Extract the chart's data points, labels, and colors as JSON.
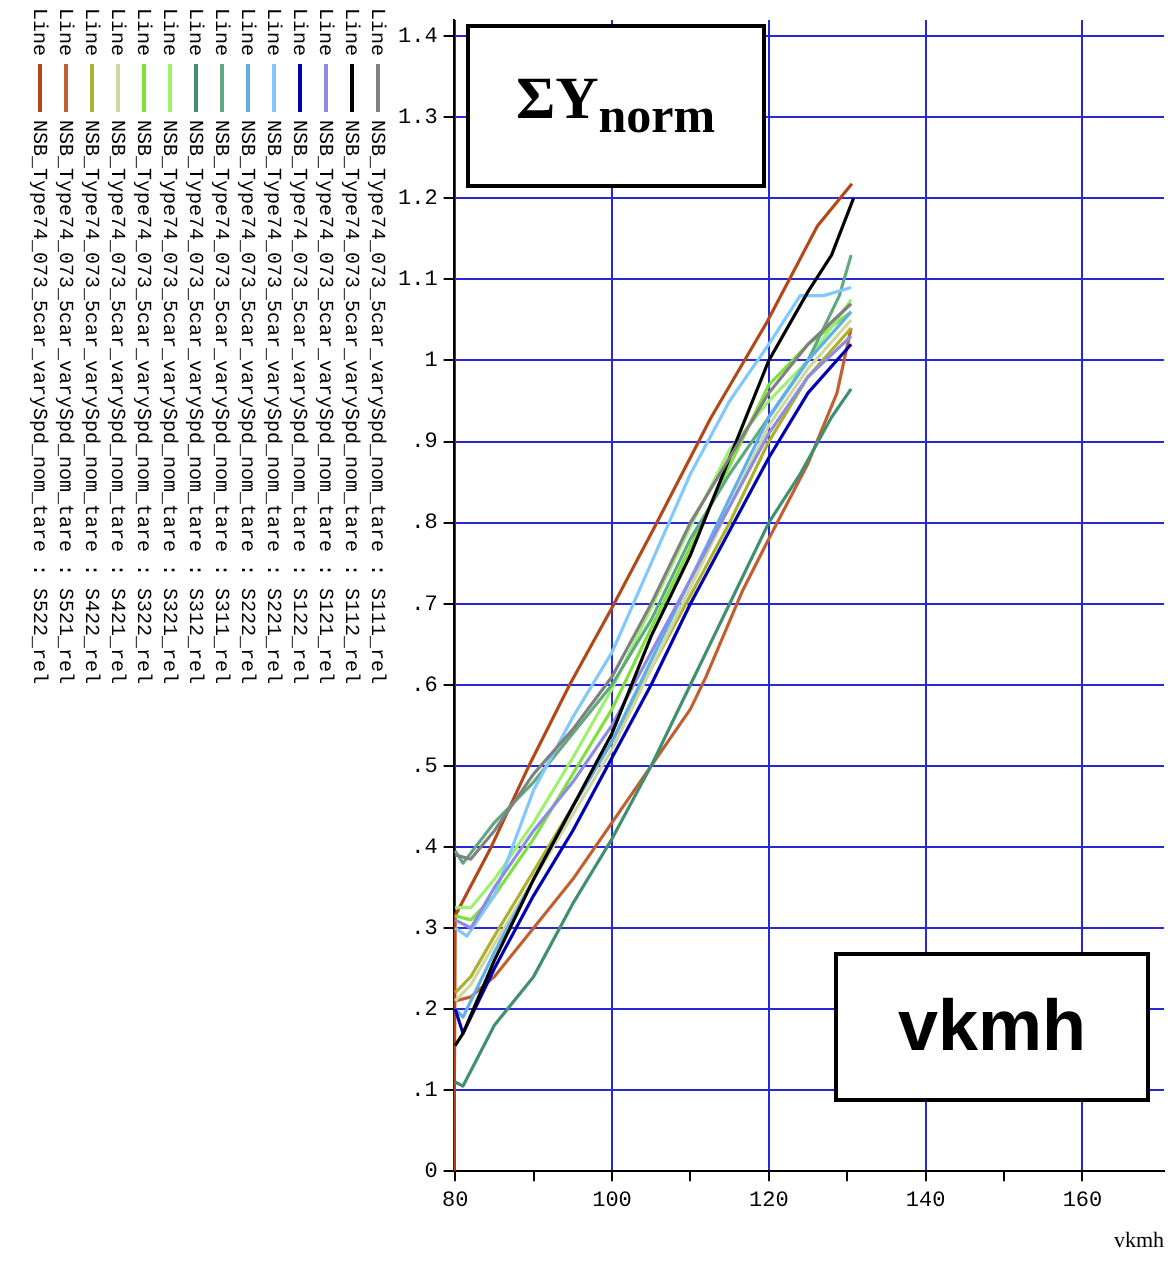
{
  "chart_data": {
    "type": "line",
    "ylabel": "ΣY$_{norm}$",
    "xlabel": "vkmh",
    "annotations": [
      "vkmh"
    ],
    "legend_title": "Line",
    "legend": "left",
    "grid": true,
    "xlim": [
      79.8,
      170.4
    ],
    "xticks": [
      80,
      {
        "value": 90,
        "label": null
      },
      100,
      {
        "value": 110,
        "label": null
      },
      120,
      {
        "value": 130,
        "label": null
      },
      140,
      {
        "value": 150,
        "label": null
      },
      160
    ],
    "ylim": [
      0,
      1.42
    ],
    "yticks": [
      0,
      {
        "value": 0.1,
        "label": ".1"
      },
      {
        "value": 0.2,
        "label": ".2"
      },
      {
        "value": 0.3,
        "label": ".3"
      },
      {
        "value": 0.4,
        "label": ".4"
      },
      {
        "value": 0.5,
        "label": ".5"
      },
      {
        "value": 0.6,
        "label": ".6"
      },
      {
        "value": 0.7,
        "label": ".7"
      },
      {
        "value": 0.8,
        "label": ".8"
      },
      {
        "value": 0.9,
        "label": ".9"
      },
      1,
      1.1,
      1.2,
      1.3,
      1.4
    ],
    "series": [
      {
        "name": "NSB_Type74_073_5car_varySpd_nom_tare : S111_rel",
        "color": "#808080",
        "x": [
          80,
          82,
          85,
          90,
          95,
          100,
          105,
          110,
          115,
          120,
          125,
          130.5
        ],
        "values": [
          0.39,
          0.385,
          0.42,
          0.49,
          0.545,
          0.61,
          0.7,
          0.8,
          0.88,
          0.96,
          1.02,
          1.07
        ]
      },
      {
        "name": "NSB_Type74_073_5car_varySpd_nom_tare : S112_rel",
        "color": "#000000",
        "x": [
          80,
          81,
          85,
          90,
          95,
          100,
          105,
          110,
          115,
          120,
          125,
          128,
          130.8
        ],
        "values": [
          0.155,
          0.17,
          0.26,
          0.36,
          0.45,
          0.54,
          0.66,
          0.76,
          0.88,
          1.0,
          1.085,
          1.13,
          1.2
        ]
      },
      {
        "name": "NSB_Type74_073_5car_varySpd_nom_tare : S121_rel",
        "color": "#8c8ce0",
        "x": [
          80,
          82,
          85,
          90,
          95,
          100,
          105,
          110,
          115,
          120,
          125,
          130.5
        ],
        "values": [
          0.31,
          0.3,
          0.35,
          0.42,
          0.48,
          0.55,
          0.64,
          0.73,
          0.82,
          0.91,
          0.98,
          1.03
        ]
      },
      {
        "name": "NSB_Type74_073_5car_varySpd_nom_tare : S122_rel",
        "color": "#0000b0",
        "x": [
          80,
          81,
          85,
          90,
          95,
          100,
          105,
          110,
          115,
          120,
          125,
          130.5
        ],
        "values": [
          0.2,
          0.17,
          0.25,
          0.34,
          0.42,
          0.51,
          0.6,
          0.7,
          0.79,
          0.88,
          0.96,
          1.02
        ]
      },
      {
        "name": "NSB_Type74_073_5car_varySpd_nom_tare : S221_rel",
        "color": "#80c8ff",
        "x": [
          80,
          81.5,
          85,
          90,
          95,
          100,
          105,
          110,
          115,
          120,
          124,
          127,
          130.5
        ],
        "values": [
          0.3,
          0.29,
          0.34,
          0.47,
          0.56,
          0.64,
          0.75,
          0.86,
          0.95,
          1.02,
          1.08,
          1.08,
          1.09
        ]
      },
      {
        "name": "NSB_Type74_073_5car_varySpd_nom_tare : S222_rel",
        "color": "#60b0e8",
        "x": [
          80,
          81,
          85,
          90,
          95,
          100,
          105,
          110,
          115,
          120,
          125,
          130.5
        ],
        "values": [
          0.2,
          0.19,
          0.27,
          0.36,
          0.45,
          0.53,
          0.63,
          0.73,
          0.83,
          0.93,
          1.0,
          1.06
        ]
      },
      {
        "name": "NSB_Type74_073_5car_varySpd_nom_tare : S311_rel",
        "color": "#60a880",
        "x": [
          80,
          81,
          85,
          90,
          95,
          100,
          105,
          110,
          115,
          120,
          125,
          129,
          130.5
        ],
        "values": [
          0.395,
          0.38,
          0.43,
          0.48,
          0.54,
          0.6,
          0.68,
          0.78,
          0.86,
          0.93,
          1.0,
          1.08,
          1.13
        ]
      },
      {
        "name": "NSB_Type74_073_5car_varySpd_nom_tare : S312_rel",
        "color": "#409070",
        "x": [
          80,
          81,
          85,
          90,
          95,
          100,
          105,
          110,
          115,
          120,
          124,
          128,
          130.5
        ],
        "values": [
          0.11,
          0.105,
          0.18,
          0.24,
          0.33,
          0.41,
          0.5,
          0.6,
          0.7,
          0.8,
          0.86,
          0.93,
          0.965
        ]
      },
      {
        "name": "NSB_Type74_073_5car_varySpd_nom_tare : S321_rel",
        "color": "#a0f070",
        "x": [
          80,
          82,
          85,
          90,
          95,
          100,
          105,
          110,
          115,
          120,
          125,
          130.5
        ],
        "values": [
          0.325,
          0.325,
          0.36,
          0.43,
          0.51,
          0.595,
          0.695,
          0.795,
          0.89,
          0.95,
          1.0,
          1.075
        ]
      },
      {
        "name": "NSB_Type74_073_5car_varySpd_nom_tare : S322_rel",
        "color": "#80e040",
        "x": [
          80,
          82,
          85,
          90,
          95,
          100,
          105,
          110,
          115,
          120,
          125,
          130.5
        ],
        "values": [
          0.315,
          0.31,
          0.34,
          0.41,
          0.49,
          0.57,
          0.67,
          0.77,
          0.87,
          0.97,
          1.02,
          1.06
        ]
      },
      {
        "name": "NSB_Type74_073_5car_varySpd_nom_tare : S421_rel",
        "color": "#d0d8a0",
        "x": [
          80,
          82,
          85,
          90,
          95,
          100,
          105,
          110,
          115,
          120,
          125,
          130.5
        ],
        "values": [
          0.21,
          0.23,
          0.28,
          0.36,
          0.44,
          0.52,
          0.62,
          0.72,
          0.82,
          0.92,
          0.99,
          1.05
        ]
      },
      {
        "name": "NSB_Type74_073_5car_varySpd_nom_tare : S422_rel",
        "color": "#b0b030",
        "x": [
          80,
          82,
          85,
          90,
          95,
          100,
          105,
          110,
          115,
          120,
          125,
          130.5
        ],
        "values": [
          0.22,
          0.24,
          0.29,
          0.37,
          0.45,
          0.53,
          0.62,
          0.71,
          0.8,
          0.9,
          0.98,
          1.04
        ]
      },
      {
        "name": "NSB_Type74_073_5car_varySpd_nom_tare : S521_rel",
        "color": "#c06030",
        "x": [
          80,
          82,
          85,
          90,
          95,
          100,
          105,
          110,
          112,
          116.6,
          120,
          125,
          128.7,
          130.5
        ],
        "values": [
          0.21,
          0.215,
          0.24,
          0.3,
          0.36,
          0.43,
          0.5,
          0.57,
          0.61,
          0.715,
          0.78,
          0.873,
          0.96,
          1.04
        ]
      },
      {
        "name": "NSB_Type74_073_5car_varySpd_nom_tare : S522_rel",
        "color": "#b04818",
        "x": [
          79.85,
          80,
          84.6,
          89.4,
          94.6,
          100,
          105.4,
          112.6,
          119.8,
          126.2,
          130.6
        ],
        "values": [
          0,
          0.315,
          0.4,
          0.5,
          0.6,
          0.695,
          0.794,
          0.929,
          1.048,
          1.166,
          1.218
        ]
      }
    ]
  }
}
